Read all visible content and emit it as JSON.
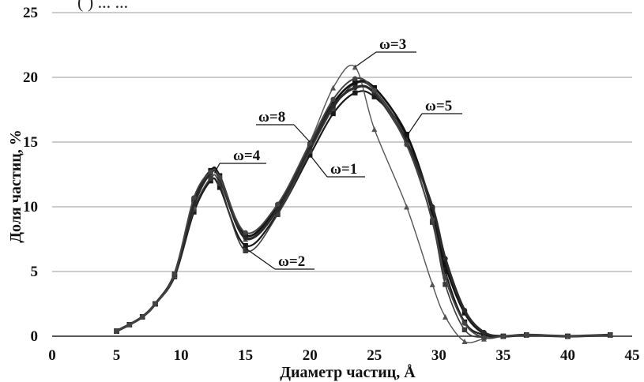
{
  "header_fragment": "(   ) ... ...",
  "chart_data": {
    "type": "line",
    "title": "",
    "xlabel": "Диаметр частиц, Å",
    "ylabel": "Доля частиц, %",
    "xlim": [
      0,
      45
    ],
    "ylim": [
      0,
      25
    ],
    "xticks": [
      0,
      5,
      10,
      15,
      20,
      25,
      30,
      35,
      40,
      45
    ],
    "yticks": [
      0,
      5,
      10,
      15,
      20,
      25
    ],
    "grid": "horizontal",
    "legend": "none",
    "x": [
      5.0,
      6.0,
      7.0,
      8.0,
      9.5,
      11.0,
      12.3,
      13.0,
      15.0,
      17.5,
      20.0,
      21.8,
      23.5,
      25.0,
      27.5,
      29.5,
      30.5,
      32.0,
      33.5,
      35.0,
      36.8,
      40.0,
      43.3
    ],
    "series": [
      {
        "name": "ω=1",
        "values": [
          0.4,
          0.9,
          1.5,
          2.5,
          4.6,
          9.6,
          12.0,
          11.5,
          7.0,
          9.5,
          14.0,
          17.2,
          18.8,
          18.5,
          15.5,
          9.5,
          5.0,
          1.1,
          0.1,
          0.0,
          0.1,
          0.0,
          0.1
        ]
      },
      {
        "name": "ω=2",
        "values": [
          0.4,
          0.9,
          1.5,
          2.5,
          4.7,
          9.8,
          12.2,
          11.8,
          6.6,
          9.4,
          14.3,
          17.6,
          19.5,
          19.0,
          15.2,
          8.8,
          4.0,
          0.5,
          -0.1,
          0.0,
          0.1,
          0.0,
          0.1
        ]
      },
      {
        "name": "ω=3",
        "values": [
          0.4,
          0.9,
          1.5,
          2.5,
          4.7,
          10.0,
          12.6,
          12.2,
          7.5,
          10.0,
          15.0,
          19.2,
          20.8,
          16.0,
          10.0,
          4.0,
          1.5,
          -0.4,
          -0.2,
          0.0,
          0.1,
          0.0,
          0.1
        ]
      },
      {
        "name": "ω=4",
        "values": [
          0.4,
          0.9,
          1.5,
          2.5,
          4.8,
          10.5,
          12.8,
          12.4,
          7.8,
          10.1,
          14.8,
          18.0,
          19.6,
          19.2,
          15.6,
          9.8,
          5.5,
          1.8,
          0.2,
          0.0,
          0.1,
          0.0,
          0.1
        ]
      },
      {
        "name": "ω=5",
        "values": [
          0.4,
          0.9,
          1.5,
          2.5,
          4.8,
          10.2,
          12.6,
          12.2,
          7.6,
          9.8,
          14.6,
          17.8,
          19.2,
          18.8,
          15.0,
          10.0,
          6.0,
          2.0,
          0.3,
          0.0,
          0.1,
          0.0,
          0.1
        ]
      },
      {
        "name": "ω=8",
        "values": [
          0.4,
          0.9,
          1.5,
          2.5,
          4.8,
          10.7,
          12.7,
          12.3,
          8.0,
          10.2,
          14.9,
          18.3,
          19.9,
          19.0,
          14.8,
          9.0,
          4.5,
          1.0,
          -0.1,
          0.0,
          0.1,
          0.0,
          0.1
        ]
      }
    ]
  }
}
